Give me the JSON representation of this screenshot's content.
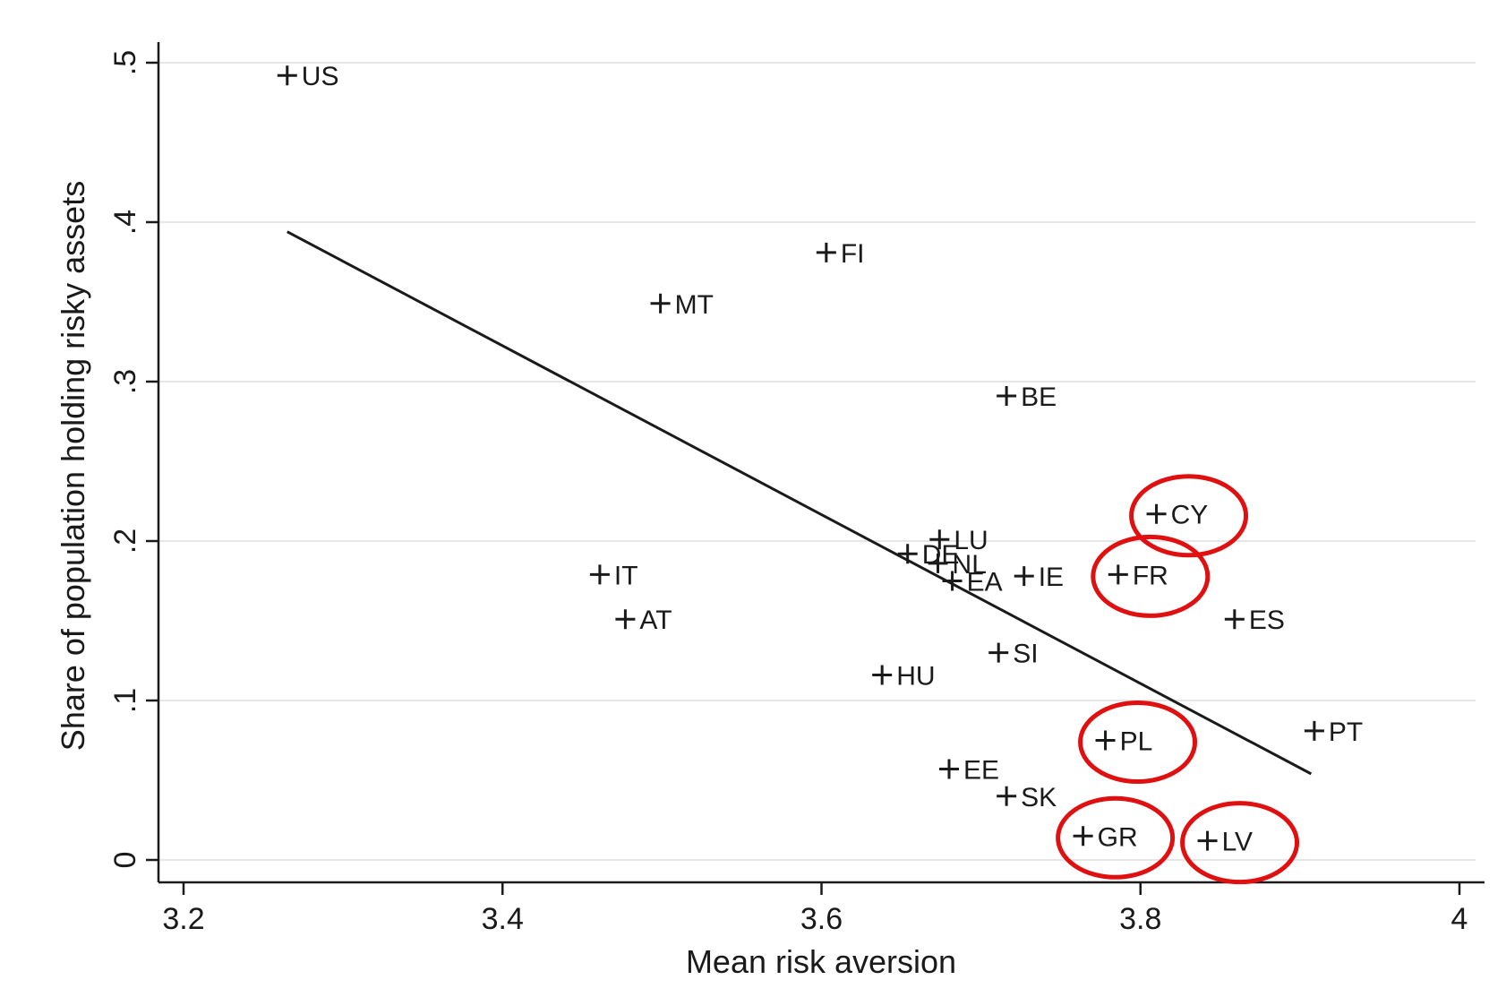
{
  "chart_data": {
    "type": "scatter",
    "title": "",
    "xlabel": "Mean risk aversion",
    "ylabel": "Share of population holding risky assets",
    "xlim": [
      3.2,
      4.0
    ],
    "ylim": [
      0,
      0.5
    ],
    "x_ticks": [
      {
        "value": 3.2,
        "label": "3.2"
      },
      {
        "value": 3.4,
        "label": "3.4"
      },
      {
        "value": 3.6,
        "label": "3.6"
      },
      {
        "value": 3.8,
        "label": "3.8"
      },
      {
        "value": 4.0,
        "label": "4"
      }
    ],
    "y_ticks": [
      {
        "value": 0,
        "label": "0"
      },
      {
        "value": 0.1,
        "label": ".1"
      },
      {
        "value": 0.2,
        "label": ".2"
      },
      {
        "value": 0.3,
        "label": ".3"
      },
      {
        "value": 0.4,
        "label": ".4"
      },
      {
        "value": 0.5,
        "label": ".5"
      }
    ],
    "grid": "horizontal",
    "marker": "plus",
    "points": [
      {
        "label": "US",
        "x": 3.265,
        "y": 0.492
      },
      {
        "label": "FI",
        "x": 3.603,
        "y": 0.381
      },
      {
        "label": "MT",
        "x": 3.499,
        "y": 0.349
      },
      {
        "label": "BE",
        "x": 3.716,
        "y": 0.291
      },
      {
        "label": "CY",
        "x": 3.81,
        "y": 0.217,
        "highlighted": true
      },
      {
        "label": "LU",
        "x": 3.674,
        "y": 0.201
      },
      {
        "label": "DE",
        "x": 3.654,
        "y": 0.192
      },
      {
        "label": "NL",
        "x": 3.673,
        "y": 0.186
      },
      {
        "label": "EA",
        "x": 3.682,
        "y": 0.175
      },
      {
        "label": "IE",
        "x": 3.727,
        "y": 0.178
      },
      {
        "label": "FR",
        "x": 3.786,
        "y": 0.179,
        "highlighted": true
      },
      {
        "label": "IT",
        "x": 3.461,
        "y": 0.179
      },
      {
        "label": "AT",
        "x": 3.477,
        "y": 0.151
      },
      {
        "label": "ES",
        "x": 3.859,
        "y": 0.151
      },
      {
        "label": "SI",
        "x": 3.711,
        "y": 0.13
      },
      {
        "label": "HU",
        "x": 3.638,
        "y": 0.116
      },
      {
        "label": "PT",
        "x": 3.909,
        "y": 0.081
      },
      {
        "label": "PL",
        "x": 3.778,
        "y": 0.075,
        "highlighted": true
      },
      {
        "label": "EE",
        "x": 3.68,
        "y": 0.057
      },
      {
        "label": "SK",
        "x": 3.716,
        "y": 0.04
      },
      {
        "label": "GR",
        "x": 3.764,
        "y": 0.015,
        "highlighted": true
      },
      {
        "label": "LV",
        "x": 3.842,
        "y": 0.012,
        "highlighted": true
      }
    ],
    "fit_line": {
      "x": [
        3.265,
        3.907
      ],
      "y": [
        0.394,
        0.054
      ]
    },
    "colors": {
      "axis": "#1a1a1a",
      "grid": "#e6e6e6",
      "points": "#1a1a1a",
      "fit": "#1a1a1a",
      "highlight": "#e01010"
    }
  }
}
